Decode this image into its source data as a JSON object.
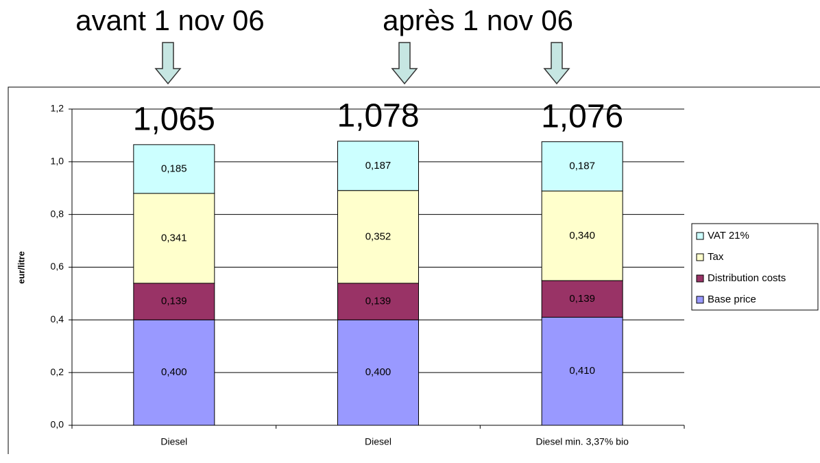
{
  "chart_data": {
    "type": "bar",
    "stacked": true,
    "annotations": [
      {
        "text": "avant 1 nov 06"
      },
      {
        "text": "après 1 nov 06"
      }
    ],
    "totals": [
      {
        "value": 1.065,
        "label": "1,065"
      },
      {
        "value": 1.078,
        "label": "1,078"
      },
      {
        "value": 1.076,
        "label": "1,076"
      }
    ],
    "y_label": "eur/litre",
    "categories": [
      "Diesel",
      "Diesel",
      "Diesel min. 3,37% bio"
    ],
    "series": [
      {
        "name": "Base price",
        "color": "#9999ff",
        "values": [
          0.4,
          0.4,
          0.41
        ],
        "value_labels": [
          "0,400",
          "0,400",
          "0,410"
        ]
      },
      {
        "name": "Distribution costs",
        "color": "#993366",
        "values": [
          0.139,
          0.139,
          0.139
        ],
        "value_labels": [
          "0,139",
          "0,139",
          "0,139"
        ]
      },
      {
        "name": "Tax",
        "color": "#ffffcc",
        "values": [
          0.341,
          0.352,
          0.34
        ],
        "value_labels": [
          "0,341",
          "0,352",
          "0,340"
        ]
      },
      {
        "name": "VAT 21%",
        "color": "#ccffff",
        "values": [
          0.185,
          0.187,
          0.187
        ],
        "value_labels": [
          "0,185",
          "0,187",
          "0,187"
        ]
      }
    ],
    "ylim": [
      0,
      1.2
    ],
    "yticks": [
      {
        "value": 0,
        "label": "0,0"
      },
      {
        "value": 0.2,
        "label": "0,2"
      },
      {
        "value": 0.4,
        "label": "0,4"
      },
      {
        "value": 0.6,
        "label": "0,6"
      },
      {
        "value": 0.8,
        "label": "0,8"
      },
      {
        "value": 1.0,
        "label": "1,0"
      },
      {
        "value": 1.2,
        "label": "1,2"
      }
    ],
    "grid": true,
    "legend": "right"
  }
}
